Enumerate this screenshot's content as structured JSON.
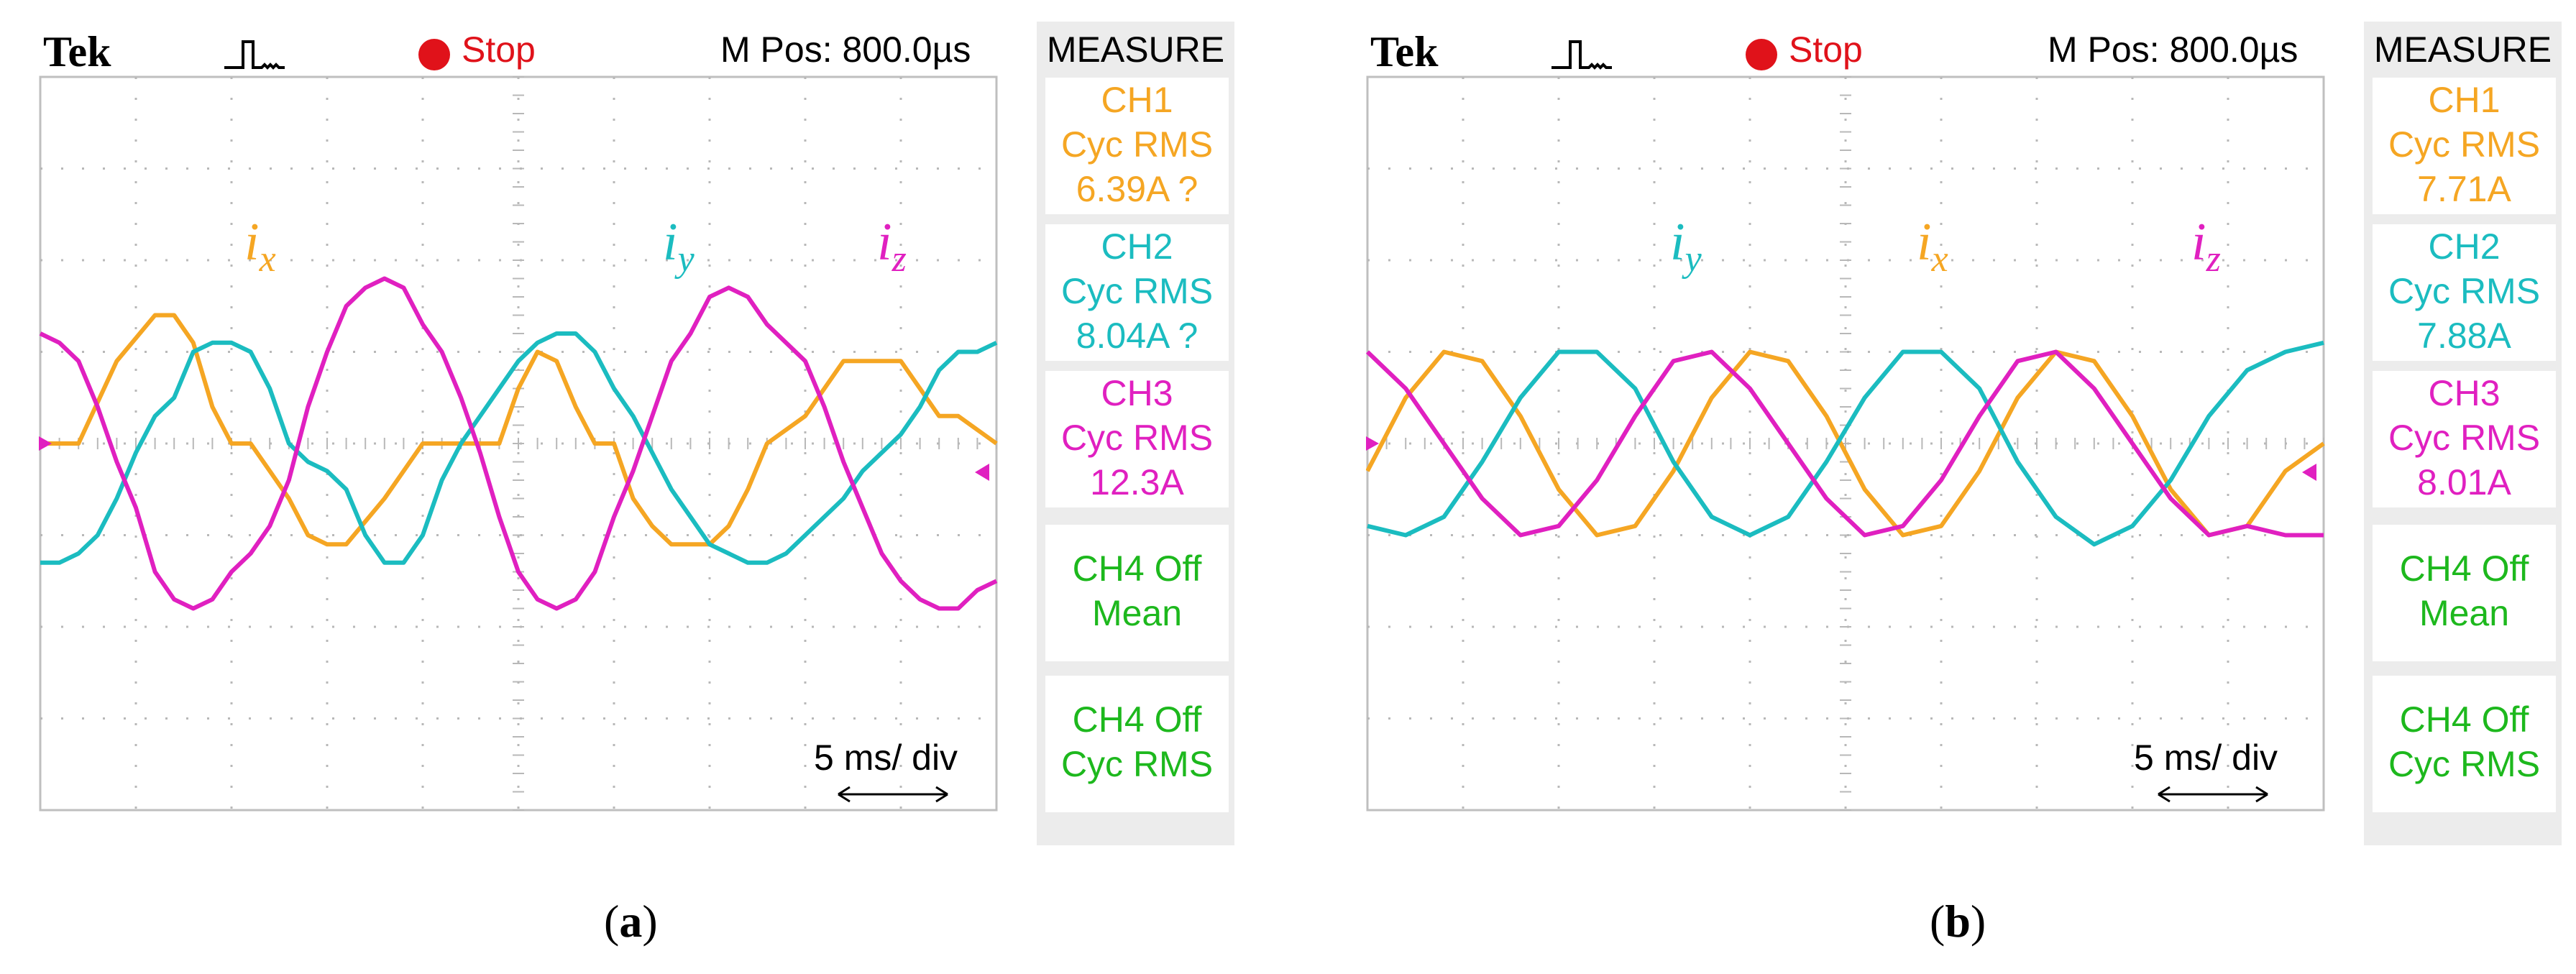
{
  "chart_data": [
    {
      "type": "line",
      "panel_label": "a",
      "brand": "Tek",
      "run_state": "Stop",
      "m_pos": "M Pos: 800.0µs",
      "timebase": "5 ms/ div",
      "ylim": [
        -4,
        4
      ],
      "x_unit": "ms",
      "xlim": [
        0,
        50
      ],
      "grid": true,
      "measure": {
        "title": "MEASURE",
        "items": [
          {
            "line1": "CH1",
            "line2": "Cyc RMS",
            "line3": "6.39A ?",
            "color": "#f5a623"
          },
          {
            "line1": "CH2",
            "line2": "Cyc RMS",
            "line3": "8.04A ?",
            "color": "#1bbcc0"
          },
          {
            "line1": "CH3",
            "line2": "Cyc RMS",
            "line3": "12.3A",
            "color": "#e020c0"
          },
          {
            "line1": "CH4 Off",
            "line2": "Mean",
            "line3": "",
            "color": "#1db81d"
          },
          {
            "line1": "CH4 Off",
            "line2": "Cyc RMS",
            "line3": "",
            "color": "#1db81d"
          }
        ]
      },
      "series": [
        {
          "name": "i",
          "sub": "x",
          "color": "#f5a623",
          "x": [
            0,
            2,
            4,
            6,
            7,
            8,
            9,
            10,
            11,
            13,
            14,
            15,
            16,
            18,
            20,
            21,
            22,
            24,
            25,
            26,
            27,
            28,
            29,
            30,
            31,
            32,
            33,
            35,
            36,
            37,
            38,
            40,
            42,
            44,
            45,
            46,
            47,
            48,
            50
          ],
          "y": [
            0,
            0,
            0.9,
            1.4,
            1.4,
            1.1,
            0.4,
            0,
            0,
            -0.6,
            -1,
            -1.1,
            -1.1,
            -0.6,
            0,
            0,
            0,
            0,
            0.6,
            1.0,
            0.9,
            0.4,
            0,
            0,
            -0.6,
            -0.9,
            -1.1,
            -1.1,
            -0.9,
            -0.5,
            0,
            0.3,
            0.9,
            0.9,
            0.9,
            0.6,
            0.3,
            0.3,
            0
          ]
        },
        {
          "name": "i",
          "sub": "y",
          "color": "#1bbcc0",
          "x": [
            0,
            1,
            2,
            3,
            4,
            5,
            6,
            7,
            8,
            9,
            10,
            11,
            12,
            13,
            14,
            15,
            16,
            17,
            18,
            19,
            20,
            21,
            22,
            23,
            24,
            25,
            26,
            27,
            28,
            29,
            30,
            31,
            32,
            33,
            34,
            35,
            36,
            37,
            38,
            39,
            40,
            41,
            42,
            43,
            44,
            45,
            46,
            47,
            48,
            49,
            50
          ],
          "y": [
            -1.3,
            -1.3,
            -1.2,
            -1.0,
            -0.6,
            -0.1,
            0.3,
            0.5,
            1.0,
            1.1,
            1.1,
            1.0,
            0.6,
            0.0,
            -0.2,
            -0.3,
            -0.5,
            -1.0,
            -1.3,
            -1.3,
            -1.0,
            -0.4,
            0.0,
            0.3,
            0.6,
            0.9,
            1.1,
            1.2,
            1.2,
            1.0,
            0.6,
            0.3,
            -0.1,
            -0.5,
            -0.8,
            -1.1,
            -1.2,
            -1.3,
            -1.3,
            -1.2,
            -1.0,
            -0.8,
            -0.6,
            -0.3,
            -0.1,
            0.1,
            0.4,
            0.8,
            1.0,
            1.0,
            1.1
          ]
        },
        {
          "name": "i",
          "sub": "z",
          "color": "#e020c0",
          "x": [
            0,
            1,
            2,
            3,
            4,
            5,
            6,
            7,
            8,
            9,
            10,
            11,
            12,
            13,
            14,
            15,
            16,
            17,
            18,
            19,
            20,
            21,
            22,
            23,
            24,
            25,
            26,
            27,
            28,
            29,
            30,
            31,
            32,
            33,
            34,
            35,
            36,
            37,
            38,
            39,
            40,
            41,
            42,
            43,
            44,
            45,
            46,
            47,
            48,
            49,
            50
          ],
          "y": [
            1.2,
            1.1,
            0.9,
            0.4,
            -0.2,
            -0.7,
            -1.4,
            -1.7,
            -1.8,
            -1.7,
            -1.4,
            -1.2,
            -0.9,
            -0.4,
            0.4,
            1.0,
            1.5,
            1.7,
            1.8,
            1.7,
            1.3,
            1.0,
            0.5,
            -0.1,
            -0.8,
            -1.4,
            -1.7,
            -1.8,
            -1.7,
            -1.4,
            -0.8,
            -0.3,
            0.3,
            0.9,
            1.2,
            1.6,
            1.7,
            1.6,
            1.3,
            1.1,
            0.9,
            0.4,
            -0.2,
            -0.7,
            -1.2,
            -1.5,
            -1.7,
            -1.8,
            -1.8,
            -1.6,
            -1.5
          ]
        }
      ]
    },
    {
      "type": "line",
      "panel_label": "b",
      "brand": "Tek",
      "run_state": "Stop",
      "m_pos": "M Pos: 800.0µs",
      "timebase": "5 ms/ div",
      "ylim": [
        -4,
        4
      ],
      "x_unit": "ms",
      "xlim": [
        0,
        50
      ],
      "grid": true,
      "measure": {
        "title": "MEASURE",
        "items": [
          {
            "line1": "CH1",
            "line2": "Cyc RMS",
            "line3": "7.71A",
            "color": "#f5a623"
          },
          {
            "line1": "CH2",
            "line2": "Cyc RMS",
            "line3": "7.88A",
            "color": "#1bbcc0"
          },
          {
            "line1": "CH3",
            "line2": "Cyc RMS",
            "line3": "8.01A",
            "color": "#e020c0"
          },
          {
            "line1": "CH4 Off",
            "line2": "Mean",
            "line3": "",
            "color": "#1db81d"
          },
          {
            "line1": "CH4 Off",
            "line2": "Cyc RMS",
            "line3": "",
            "color": "#1db81d"
          }
        ]
      },
      "series": [
        {
          "name": "i",
          "sub": "x",
          "color": "#f5a623",
          "x": [
            0,
            2,
            4,
            6,
            8,
            10,
            12,
            14,
            16,
            18,
            20,
            22,
            24,
            26,
            28,
            30,
            32,
            34,
            36,
            38,
            40,
            42,
            44,
            46,
            48,
            50
          ],
          "y": [
            -0.3,
            0.5,
            1.0,
            0.9,
            0.3,
            -0.5,
            -1.0,
            -0.9,
            -0.3,
            0.5,
            1.0,
            0.9,
            0.3,
            -0.5,
            -1.0,
            -0.9,
            -0.3,
            0.5,
            1.0,
            0.9,
            0.3,
            -0.5,
            -1.0,
            -0.9,
            -0.3,
            0.0
          ]
        },
        {
          "name": "i",
          "sub": "y",
          "color": "#1bbcc0",
          "x": [
            0,
            2,
            4,
            6,
            8,
            10,
            12,
            14,
            16,
            18,
            20,
            22,
            24,
            26,
            28,
            30,
            32,
            34,
            36,
            38,
            40,
            42,
            44,
            46,
            48,
            50
          ],
          "y": [
            -0.9,
            -1.0,
            -0.8,
            -0.2,
            0.5,
            1.0,
            1.0,
            0.6,
            -0.2,
            -0.8,
            -1.0,
            -0.8,
            -0.2,
            0.5,
            1.0,
            1.0,
            0.6,
            -0.2,
            -0.8,
            -1.1,
            -0.9,
            -0.4,
            0.3,
            0.8,
            1.0,
            1.1
          ]
        },
        {
          "name": "i",
          "sub": "z",
          "color": "#e020c0",
          "x": [
            0,
            2,
            4,
            6,
            8,
            10,
            12,
            14,
            16,
            18,
            20,
            22,
            24,
            26,
            28,
            30,
            32,
            34,
            36,
            38,
            40,
            42,
            44,
            46,
            48,
            50
          ],
          "y": [
            1.0,
            0.6,
            0.0,
            -0.6,
            -1.0,
            -0.9,
            -0.4,
            0.3,
            0.9,
            1.0,
            0.6,
            0.0,
            -0.6,
            -1.0,
            -0.9,
            -0.4,
            0.3,
            0.9,
            1.0,
            0.6,
            0.0,
            -0.6,
            -1.0,
            -0.9,
            -1.0,
            -1.0
          ]
        }
      ]
    }
  ],
  "captions": {
    "a_open": "(",
    "a_label": "a",
    "a_close": ")",
    "b_open": "(",
    "b_label": "b",
    "b_close": ")"
  }
}
